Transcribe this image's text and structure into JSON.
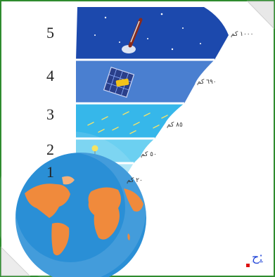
{
  "layers": [
    {
      "number": "5",
      "altitude": "١٠٠٠ كم",
      "color": "#1c49ad"
    },
    {
      "number": "4",
      "altitude": "٦٩٠ كم",
      "color": "#4a7fd0"
    },
    {
      "number": "3",
      "altitude": "٨٥ كم",
      "color": "#36b7ea"
    },
    {
      "number": "2",
      "altitude": "٥٠ كم",
      "color": "#6cd0f1"
    },
    {
      "number": "1",
      "altitude": "٢٠ كم",
      "color": "#a8e4f6"
    }
  ],
  "caption": "ح:",
  "icons": [
    "rocket-icon",
    "satellite-icon",
    "meteor-icon",
    "weather-balloon-icon",
    "airplane-icon",
    "globe-icon"
  ],
  "colors": {
    "border": "#2e8b2e",
    "ocean": "#2a8fd6",
    "land": "#f08a3c"
  }
}
